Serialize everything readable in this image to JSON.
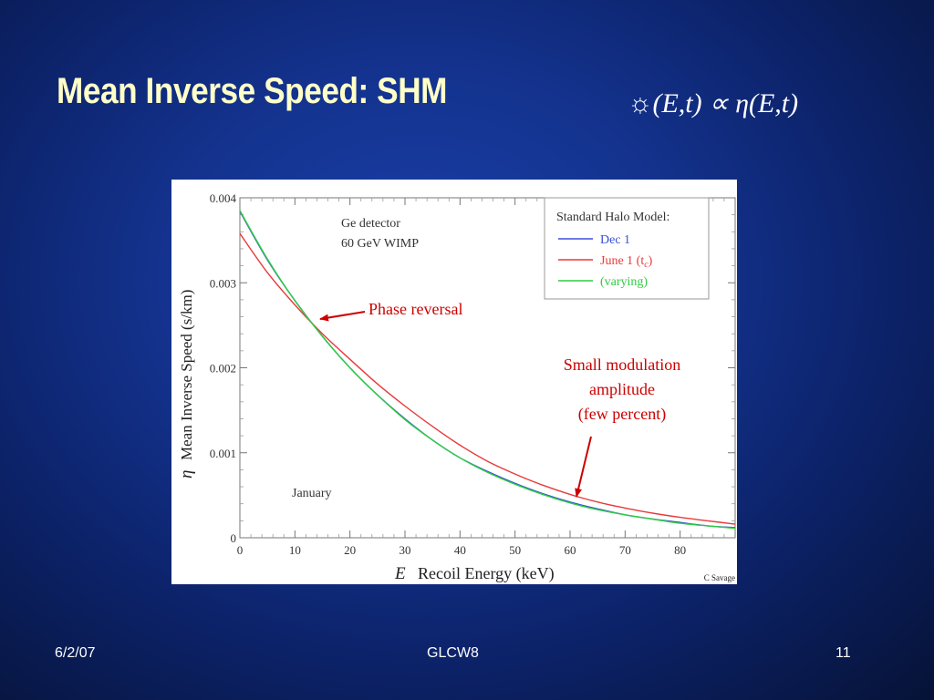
{
  "slide": {
    "title": "Mean Inverse Speed: SHM",
    "formula": "☼(E,t) ∝ η(E,t)",
    "footer_date": "6/2/07",
    "footer_event": "GLCW8",
    "footer_page": "11"
  },
  "colors": {
    "title": "#ffffc8",
    "dec1": "#3a4fd8",
    "june1": "#e83a3a",
    "varying": "#2ecc40",
    "annotation": "#cc0000"
  },
  "chart_data": {
    "type": "line",
    "title": "",
    "xlabel_var": "E",
    "xlabel": "Recoil Energy (keV)",
    "ylabel_var": "η",
    "ylabel": "Mean Inverse Speed (s/km)",
    "xlim": [
      0,
      90
    ],
    "ylim": [
      0,
      0.004
    ],
    "xticks": [
      "0",
      "10",
      "20",
      "30",
      "40",
      "50",
      "60",
      "70",
      "80"
    ],
    "yticks": [
      "0",
      "0.001",
      "0.002",
      "0.003",
      "0.004"
    ],
    "x": [
      0,
      5,
      10,
      15,
      20,
      25,
      30,
      35,
      40,
      45,
      50,
      55,
      60,
      65,
      70,
      75,
      80,
      85,
      90
    ],
    "series": [
      {
        "name": "Dec 1",
        "color": "#3a4fd8",
        "values": [
          0.00384,
          0.00327,
          0.00279,
          0.00237,
          0.002,
          0.00168,
          0.0014,
          0.00115,
          0.00094,
          0.00078,
          0.00064,
          0.00052,
          0.00042,
          0.00034,
          0.00027,
          0.00022,
          0.00018,
          0.00014,
          0.00012
        ]
      },
      {
        "name": "June 1 (t_c)",
        "color": "#e83a3a",
        "values": [
          0.00358,
          0.00312,
          0.00274,
          0.0024,
          0.0021,
          0.00181,
          0.00155,
          0.00131,
          0.00109,
          0.0009,
          0.00075,
          0.00062,
          0.00051,
          0.00042,
          0.00035,
          0.00029,
          0.00024,
          0.0002,
          0.00016
        ]
      },
      {
        "name": "(varying)",
        "color": "#2ecc40",
        "values": [
          0.00385,
          0.00328,
          0.00279,
          0.00237,
          0.002,
          0.00168,
          0.00139,
          0.00115,
          0.00094,
          0.00077,
          0.00063,
          0.00051,
          0.00041,
          0.00033,
          0.00027,
          0.00022,
          0.00017,
          0.00014,
          0.00011
        ]
      }
    ],
    "legend": {
      "title": "Standard Halo Model:",
      "placement": "top-right",
      "entries": [
        {
          "label": "Dec 1",
          "color": "#3a4fd8"
        },
        {
          "label": "June 1 (t",
          "sub": "c",
          "tail": ")",
          "color": "#e83a3a"
        },
        {
          "label": "(varying)",
          "color": "#2ecc40"
        }
      ]
    },
    "annotations": {
      "detector_line1": "Ge detector",
      "detector_line2": "60 GeV WIMP",
      "month": "January",
      "phase": "Phase reversal",
      "mod_line1": "Small modulation",
      "mod_line2": "amplitude",
      "mod_line3": "(few percent)",
      "credit": "C Savage"
    }
  }
}
